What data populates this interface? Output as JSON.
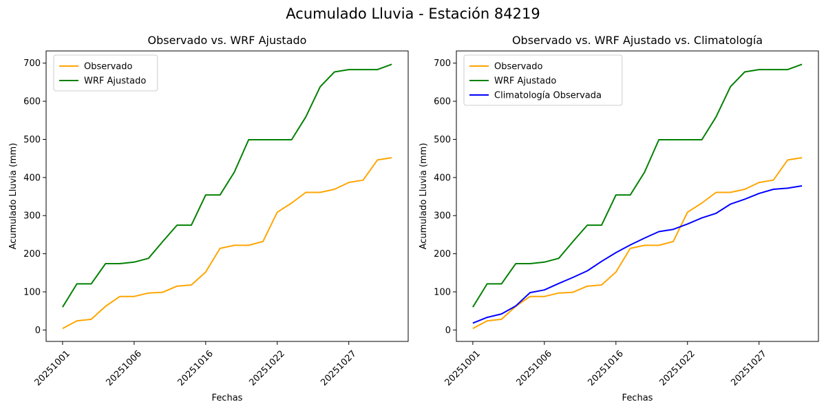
{
  "figure": {
    "suptitle": "Acumulado Lluvia - Estación 84219"
  },
  "chart_data": [
    {
      "type": "line",
      "title": "Observado vs. WRF Ajustado",
      "xlabel": "Fechas",
      "ylabel": "Acumulado Lluvia (mm)",
      "x_tick_labels": [
        "20251001",
        "20251006",
        "20251016",
        "20251022",
        "20251027"
      ],
      "x_tick_positions": [
        0,
        5,
        10,
        15,
        20
      ],
      "y_ticks": [
        0,
        100,
        200,
        300,
        400,
        500,
        600,
        700
      ],
      "ylim": [
        -30,
        732
      ],
      "legend_position": "upper-left",
      "grid": false,
      "series": [
        {
          "name": "Observado",
          "color": "#FFA500",
          "values": [
            4,
            24,
            28,
            62,
            88,
            88,
            97,
            99,
            115,
            118,
            152,
            214,
            222,
            222,
            232,
            309,
            333,
            361,
            361,
            369,
            387,
            393,
            446,
            452
          ]
        },
        {
          "name": "WRF Ajustado",
          "color": "#008000",
          "values": [
            60,
            121,
            121,
            174,
            174,
            178,
            188,
            232,
            275,
            275,
            354,
            354,
            414,
            499,
            499,
            499,
            499,
            559,
            638,
            677,
            683,
            683,
            683,
            697
          ]
        }
      ]
    },
    {
      "type": "line",
      "title": "Observado vs. WRF Ajustado vs. Climatología",
      "xlabel": "Fechas",
      "ylabel": "Acumulado Lluvia (mm)",
      "x_tick_labels": [
        "20251001",
        "20251006",
        "20251016",
        "20251022",
        "20251027"
      ],
      "x_tick_positions": [
        0,
        5,
        10,
        15,
        20
      ],
      "y_ticks": [
        0,
        100,
        200,
        300,
        400,
        500,
        600,
        700
      ],
      "ylim": [
        -30,
        732
      ],
      "legend_position": "upper-left",
      "grid": false,
      "series": [
        {
          "name": "Observado",
          "color": "#FFA500",
          "values": [
            4,
            24,
            28,
            62,
            88,
            88,
            97,
            99,
            115,
            118,
            152,
            214,
            222,
            222,
            232,
            309,
            333,
            361,
            361,
            369,
            387,
            393,
            446,
            452
          ]
        },
        {
          "name": "WRF Ajustado",
          "color": "#008000",
          "values": [
            60,
            121,
            121,
            174,
            174,
            178,
            188,
            232,
            275,
            275,
            354,
            354,
            414,
            499,
            499,
            499,
            499,
            559,
            638,
            677,
            683,
            683,
            683,
            697
          ]
        },
        {
          "name": "Climatología Observada",
          "color": "#0000FF",
          "values": [
            18,
            33,
            42,
            63,
            98,
            105,
            122,
            138,
            155,
            180,
            203,
            223,
            241,
            258,
            264,
            278,
            294,
            306,
            330,
            343,
            358,
            369,
            372,
            378
          ]
        }
      ]
    }
  ]
}
